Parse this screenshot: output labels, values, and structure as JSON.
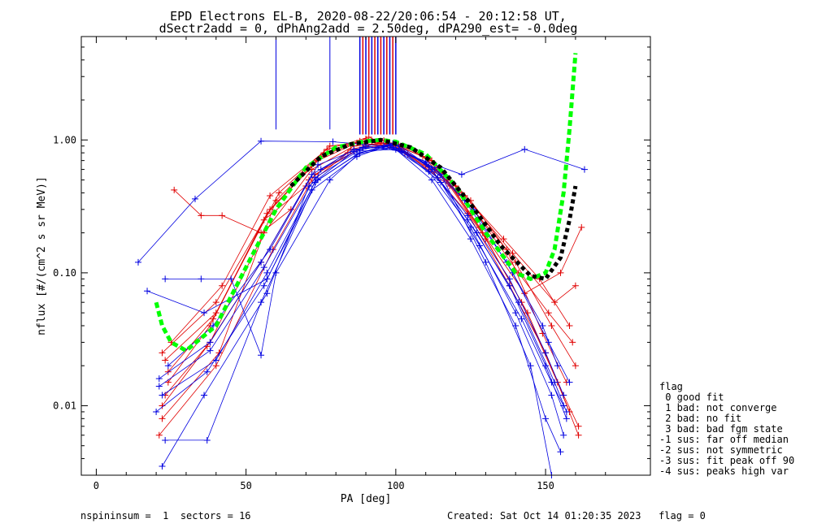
{
  "chart_data": {
    "type": "line",
    "title_line1": "EPD Electrons EL-B, 2020-08-22/20:06:54 - 20:12:58 UT,",
    "title_line2": "dSectr2add = 0, dPhAng2add = 2.50deg, dPA290_est=  -0.0deg",
    "xlabel": "PA [deg]",
    "ylabel": "nflux [#/(cm^2 s sr MeV)]",
    "xlim": [
      -5,
      185
    ],
    "ylim": [
      0.003,
      6.0
    ],
    "yscale": "log",
    "xticks": [
      0,
      50,
      100,
      150
    ],
    "xtick_labels": [
      "0",
      "50",
      "100",
      "150"
    ],
    "yticks": [
      0.01,
      0.1,
      1.0
    ],
    "ytick_labels": [
      "0.01",
      "0.10",
      "1.00"
    ],
    "grid": false,
    "colors": {
      "red": "#e00000",
      "blue": "#0000e0",
      "green": "#00ff00",
      "black": "#000000"
    },
    "series": [
      {
        "color": "red",
        "x": [
          22,
          40,
          58,
          75,
          88,
          100,
          112,
          125,
          140,
          152,
          160
        ],
        "y": [
          0.025,
          0.06,
          0.3,
          0.75,
          0.98,
          0.92,
          0.7,
          0.35,
          0.12,
          0.04,
          0.02
        ]
      },
      {
        "color": "red",
        "x": [
          23,
          38,
          56,
          72,
          86,
          98,
          110,
          124,
          138,
          150,
          158
        ],
        "y": [
          0.012,
          0.03,
          0.2,
          0.6,
          0.9,
          0.95,
          0.65,
          0.28,
          0.08,
          0.025,
          0.009
        ]
      },
      {
        "color": "red",
        "x": [
          22,
          41,
          60,
          76,
          90,
          102,
          116,
          128,
          142,
          154,
          161
        ],
        "y": [
          0.008,
          0.025,
          0.35,
          0.8,
          1.02,
          0.85,
          0.55,
          0.22,
          0.06,
          0.015,
          0.006
        ]
      },
      {
        "color": "red",
        "x": [
          24,
          39,
          57,
          74,
          87,
          99,
          113,
          126,
          141,
          151,
          159
        ],
        "y": [
          0.018,
          0.045,
          0.28,
          0.7,
          0.95,
          0.9,
          0.6,
          0.3,
          0.1,
          0.05,
          0.03
        ]
      },
      {
        "color": "red",
        "x": [
          21,
          40,
          59,
          73,
          89,
          101,
          111,
          123,
          139,
          153,
          160
        ],
        "y": [
          0.006,
          0.02,
          0.15,
          0.55,
          0.88,
          0.93,
          0.72,
          0.38,
          0.14,
          0.06,
          0.08
        ]
      },
      {
        "color": "red",
        "x": [
          25,
          42,
          58,
          77,
          91,
          103,
          117,
          129,
          143,
          155,
          162
        ],
        "y": [
          0.03,
          0.08,
          0.38,
          0.85,
          1.05,
          0.8,
          0.5,
          0.2,
          0.07,
          0.1,
          0.22
        ]
      },
      {
        "color": "red",
        "x": [
          26,
          35,
          42,
          55,
          65
        ],
        "y": [
          0.42,
          0.27,
          0.27,
          0.2,
          0.3
        ]
      },
      {
        "color": "red",
        "x": [
          22,
          37,
          55,
          71,
          85,
          97,
          109,
          121,
          137,
          149,
          157
        ],
        "y": [
          0.01,
          0.028,
          0.12,
          0.5,
          0.85,
          0.97,
          0.75,
          0.4,
          0.15,
          0.035,
          0.015
        ]
      },
      {
        "color": "red",
        "x": [
          23,
          40,
          61,
          78,
          92,
          104,
          118,
          130,
          144,
          156,
          161
        ],
        "y": [
          0.022,
          0.05,
          0.4,
          0.9,
          0.98,
          0.78,
          0.45,
          0.18,
          0.05,
          0.012,
          0.007
        ]
      },
      {
        "color": "red",
        "x": [
          24,
          38,
          56,
          70,
          84,
          96,
          108,
          120,
          136,
          148,
          158
        ],
        "y": [
          0.015,
          0.04,
          0.25,
          0.45,
          0.8,
          0.99,
          0.8,
          0.45,
          0.18,
          0.09,
          0.04
        ]
      },
      {
        "color": "blue",
        "x": [
          14,
          33,
          55,
          79,
          96,
          122,
          143,
          163
        ],
        "y": [
          0.12,
          0.36,
          0.98,
          0.97,
          0.9,
          0.55,
          0.85,
          0.6
        ]
      },
      {
        "color": "blue",
        "x": [
          17,
          36,
          57,
          74,
          88,
          100,
          112,
          124,
          138,
          150,
          157
        ],
        "y": [
          0.073,
          0.05,
          0.09,
          0.5,
          0.8,
          0.92,
          0.6,
          0.25,
          0.08,
          0.02,
          0.008
        ]
      },
      {
        "color": "blue",
        "x": [
          21,
          38,
          55,
          72,
          86,
          98,
          111,
          125,
          140,
          152,
          156
        ],
        "y": [
          0.016,
          0.03,
          0.12,
          0.55,
          0.85,
          0.9,
          0.58,
          0.22,
          0.05,
          0.012,
          0.006
        ]
      },
      {
        "color": "blue",
        "x": [
          22,
          40,
          57,
          73,
          87,
          99,
          113,
          126,
          139,
          151,
          158
        ],
        "y": [
          0.012,
          0.022,
          0.1,
          0.48,
          0.78,
          0.88,
          0.62,
          0.3,
          0.1,
          0.03,
          0.015
        ]
      },
      {
        "color": "blue",
        "x": [
          20,
          37,
          56,
          75,
          89,
          101,
          114,
          127,
          141,
          153,
          157
        ],
        "y": [
          0.009,
          0.018,
          0.08,
          0.6,
          0.88,
          0.86,
          0.52,
          0.2,
          0.06,
          0.015,
          0.009
        ]
      },
      {
        "color": "blue",
        "x": [
          23,
          37,
          55,
          72,
          87,
          98,
          110,
          123,
          137,
          149,
          154
        ],
        "y": [
          0.0055,
          0.0055,
          0.06,
          0.42,
          0.75,
          0.92,
          0.68,
          0.35,
          0.12,
          0.04,
          0.02
        ]
      },
      {
        "color": "blue",
        "x": [
          22,
          36,
          57,
          71,
          86,
          100,
          112,
          125,
          140,
          150,
          155
        ],
        "y": [
          0.0035,
          0.012,
          0.07,
          0.45,
          0.82,
          0.85,
          0.5,
          0.18,
          0.04,
          0.008,
          0.0045
        ]
      },
      {
        "color": "blue",
        "x": [
          23,
          35,
          45,
          55,
          60,
          78,
          88,
          100,
          115,
          130,
          145,
          152
        ],
        "y": [
          0.09,
          0.09,
          0.09,
          0.024,
          0.1,
          0.5,
          0.8,
          0.95,
          0.55,
          0.12,
          0.02,
          0.003
        ]
      },
      {
        "color": "blue",
        "x": [
          24,
          39,
          58,
          74,
          90,
          102,
          115,
          128,
          142,
          152,
          156
        ],
        "y": [
          0.02,
          0.04,
          0.15,
          0.65,
          0.9,
          0.82,
          0.48,
          0.16,
          0.045,
          0.015,
          0.01
        ]
      },
      {
        "color": "blue",
        "x": [
          21,
          38,
          56,
          73,
          88,
          99,
          111,
          124,
          138,
          150,
          156
        ],
        "y": [
          0.014,
          0.026,
          0.11,
          0.52,
          0.84,
          0.94,
          0.63,
          0.27,
          0.09,
          0.025,
          0.012
        ]
      }
    ],
    "fit_green": {
      "x": [
        20,
        22,
        25,
        30,
        40,
        50,
        60,
        70,
        80,
        90,
        95,
        100,
        110,
        120,
        130,
        140,
        145,
        150,
        153,
        156,
        158,
        160
      ],
      "y": [
        0.06,
        0.04,
        0.03,
        0.026,
        0.04,
        0.11,
        0.3,
        0.62,
        0.88,
        0.98,
        1.0,
        0.97,
        0.78,
        0.45,
        0.2,
        0.1,
        0.09,
        0.1,
        0.15,
        0.4,
        1.2,
        4.5
      ]
    },
    "fit_black": {
      "x": [
        65,
        75,
        85,
        95,
        105,
        115,
        125,
        135,
        145,
        150,
        155,
        158,
        160
      ],
      "y": [
        0.45,
        0.75,
        0.93,
        1.0,
        0.88,
        0.62,
        0.33,
        0.16,
        0.095,
        0.09,
        0.13,
        0.25,
        0.45
      ]
    },
    "vlines_blue": [
      60,
      78
    ],
    "vline_cluster": [
      88,
      89,
      90,
      91,
      92,
      93,
      94,
      95,
      96,
      97,
      98,
      99,
      100
    ]
  },
  "legend": {
    "title": "flag",
    "items": [
      " 0 good fit",
      " 1 bad: not converge",
      " 2 bad: no fit",
      " 3 bad: bad fgm state",
      "-1 sus: far off median",
      "-2 sus: not symmetric",
      "-3 sus: fit peak off 90",
      "-4 sus: peaks high var"
    ]
  },
  "footer": {
    "left": "nspininsum =  1  sectors = 16",
    "right": "Created: Sat Oct 14 01:20:35 2023   flag = 0"
  }
}
